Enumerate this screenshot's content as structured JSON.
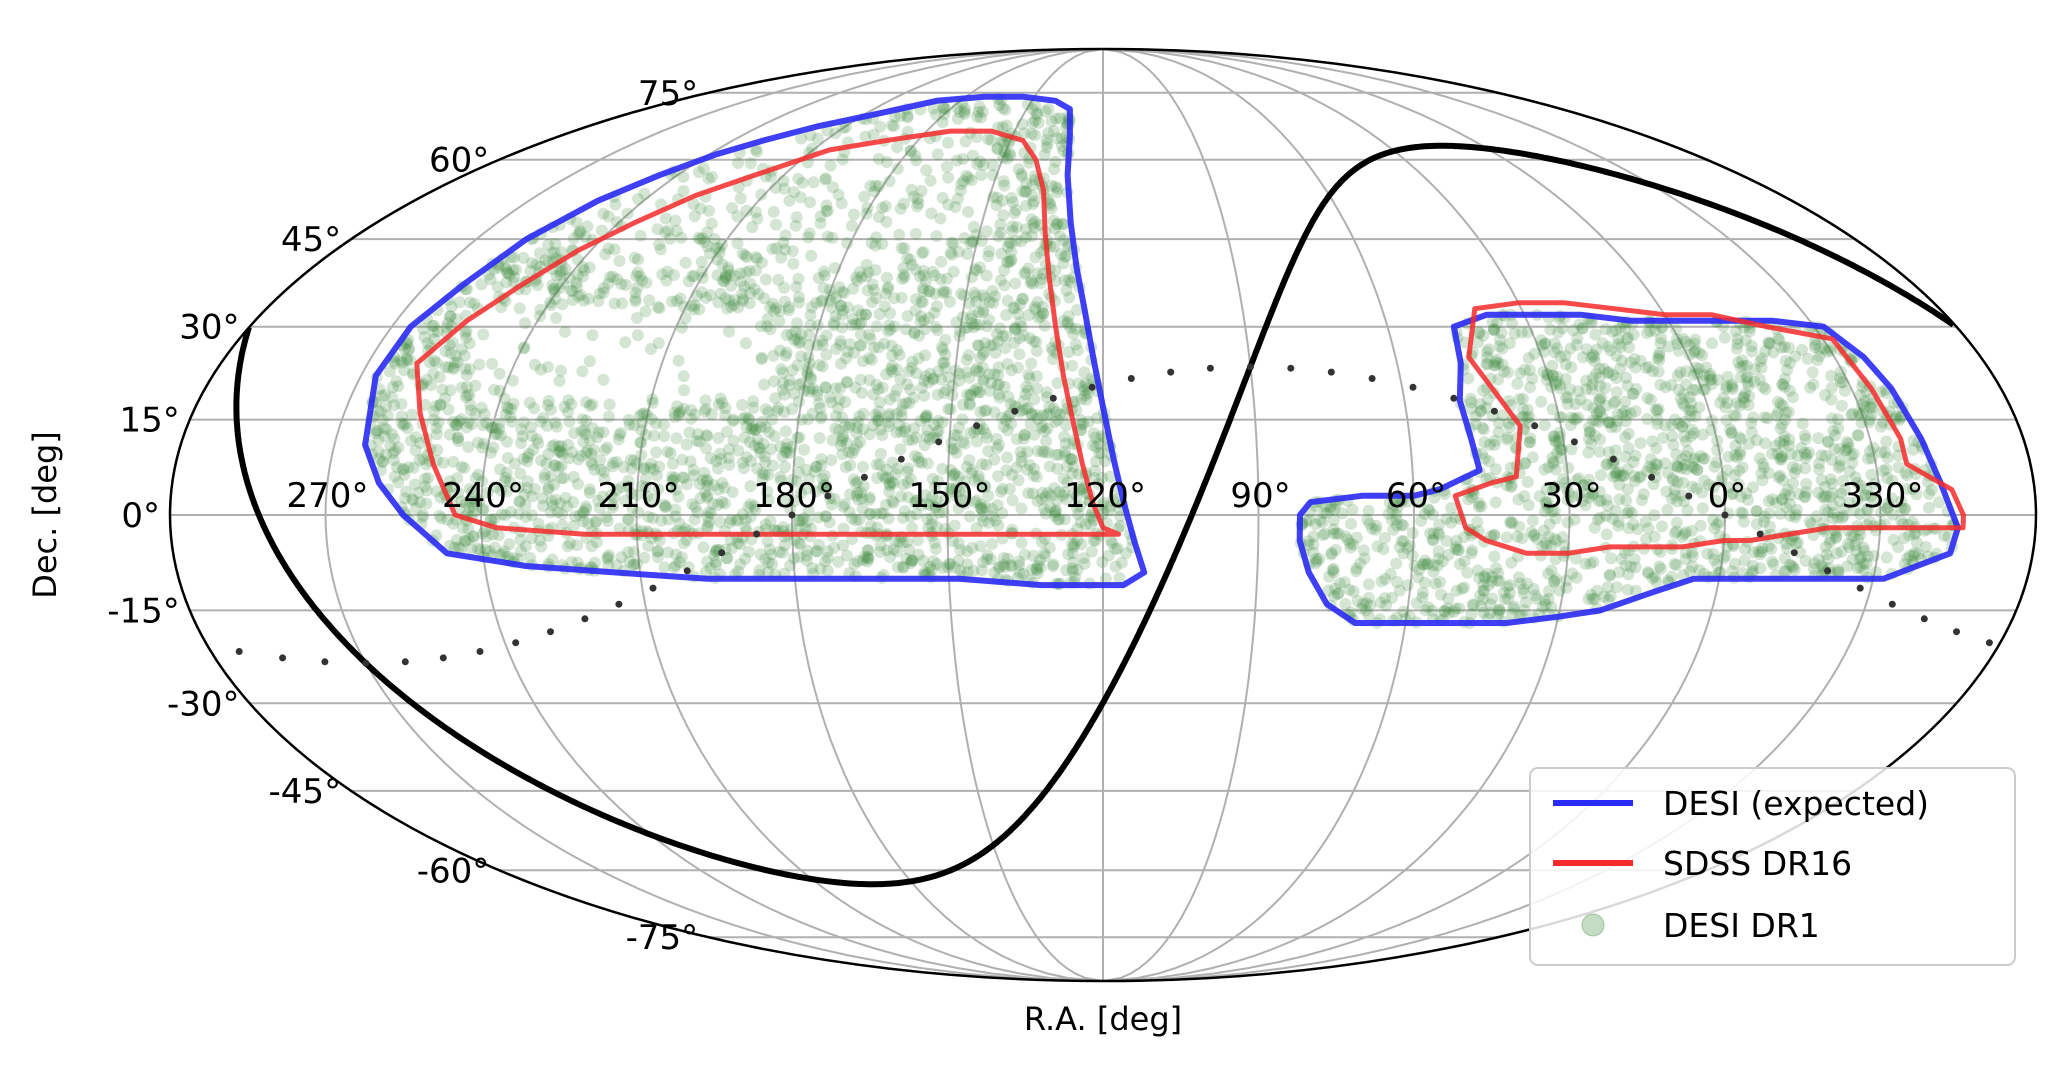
{
  "chart_data": {
    "type": "scatter",
    "projection": "mollweide",
    "xlabel": "R.A. [deg]",
    "ylabel": "Dec. [deg]",
    "ra_ticks": [
      270,
      240,
      210,
      180,
      150,
      120,
      90,
      60,
      30,
      0,
      330
    ],
    "ra_tick_labels": [
      "270°",
      "240°",
      "210°",
      "180°",
      "150°",
      "120°",
      "90°",
      "60°",
      "30°",
      "0°",
      "330°"
    ],
    "dec_ticks": [
      75,
      60,
      45,
      30,
      15,
      0,
      -15,
      -30,
      -45,
      -60,
      -75
    ],
    "dec_tick_labels": [
      "75°",
      "60°",
      "45°",
      "30°",
      "15°",
      "0°",
      "-15°",
      "-30°",
      "-45°",
      "-60°",
      "-75°"
    ],
    "grid": true,
    "legend_position": "bottom-right",
    "colors": {
      "desi_expected": "#2a2af5",
      "sdss_dr16": "#f52a2a",
      "desi_dr1": "#3d8a3d",
      "overlap": "#7a2a00",
      "galactic_plane": "#000000",
      "ecliptic": "#333333",
      "grid": "#b0b0b0"
    },
    "series": [
      {
        "name": "DESI (expected)",
        "kind": "line",
        "footprints": [
          [
            [
              267,
              22
            ],
            [
              266,
              30
            ],
            [
              262,
              37
            ],
            [
              258,
              45
            ],
            [
              252,
              52
            ],
            [
              245,
              57
            ],
            [
              238,
              61
            ],
            [
              230,
              64
            ],
            [
              220,
              67
            ],
            [
              205,
              70
            ],
            [
              190,
              73
            ],
            [
              172,
              74
            ],
            [
              155,
              74
            ],
            [
              140,
              73
            ],
            [
              133,
              71
            ],
            [
              131,
              65
            ],
            [
              130,
              57
            ],
            [
              128,
              48
            ],
            [
              126,
              40
            ],
            [
              124,
              33
            ],
            [
              122,
              25
            ],
            [
              120,
              17
            ],
            [
              118,
              9
            ],
            [
              116,
              2
            ],
            [
              114,
              -4
            ],
            [
              112,
              -9
            ],
            [
              116,
              -11
            ],
            [
              132,
              -11
            ],
            [
              148,
              -10
            ],
            [
              165,
              -10
            ],
            [
              180,
              -10
            ],
            [
              197,
              -10
            ],
            [
              215,
              -9
            ],
            [
              232,
              -8
            ],
            [
              247,
              -6
            ],
            [
              255,
              0
            ],
            [
              260,
              5
            ],
            [
              264,
              11
            ],
            [
              267,
              22
            ]
          ],
          [
            [
              47,
              7
            ],
            [
              48,
              12
            ],
            [
              49,
              18
            ],
            [
              47,
              24
            ],
            [
              46,
              30
            ],
            [
              38,
              32
            ],
            [
              28,
              32
            ],
            [
              18,
              32
            ],
            [
              8,
              31
            ],
            [
              0,
              31
            ],
            [
              -10,
              31
            ],
            [
              -22,
              31
            ],
            [
              -32,
              30
            ],
            [
              -36,
              25
            ],
            [
              -38,
              20
            ],
            [
              -40,
              12
            ],
            [
              -42,
              5
            ],
            [
              -45,
              -2
            ],
            [
              -44,
              -6
            ],
            [
              -32,
              -10
            ],
            [
              -18,
              -10
            ],
            [
              -4,
              -10
            ],
            [
              5,
              -10
            ],
            [
              12,
              -12
            ],
            [
              22,
              -15
            ],
            [
              30,
              -16
            ],
            [
              40,
              -17
            ],
            [
              52,
              -17
            ],
            [
              62,
              -17
            ],
            [
              70,
              -17
            ],
            [
              76,
              -14
            ],
            [
              80,
              -9
            ],
            [
              82,
              -4
            ],
            [
              82,
              0
            ],
            [
              80,
              2
            ],
            [
              70,
              3
            ],
            [
              60,
              3
            ],
            [
              55,
              4
            ],
            [
              47,
              7
            ]
          ]
        ]
      },
      {
        "name": "SDSS DR16",
        "kind": "line",
        "footprints": [
          [
            [
              260,
              24
            ],
            [
              255,
              31
            ],
            [
              249,
              37
            ],
            [
              243,
              43
            ],
            [
              236,
              48
            ],
            [
              228,
              53
            ],
            [
              218,
              57
            ],
            [
              205,
              62
            ],
            [
              190,
              64
            ],
            [
              172,
              66
            ],
            [
              158,
              66
            ],
            [
              146,
              64
            ],
            [
              140,
              60
            ],
            [
              136,
              54
            ],
            [
              134,
              46
            ],
            [
              132,
              38
            ],
            [
              130,
              30
            ],
            [
              128,
              22
            ],
            [
              126,
              15
            ],
            [
              124,
              8
            ],
            [
              122,
              2
            ],
            [
              120,
              -2
            ],
            [
              117,
              -3
            ],
            [
              132,
              -3
            ],
            [
              150,
              -3
            ],
            [
              170,
              -3
            ],
            [
              185,
              -3
            ],
            [
              200,
              -3
            ],
            [
              220,
              -3
            ],
            [
              237,
              -2
            ],
            [
              245,
              0
            ],
            [
              250,
              8
            ],
            [
              255,
              16
            ],
            [
              260,
              24
            ]
          ],
          [
            [
              45,
              25
            ],
            [
              40,
              33
            ],
            [
              30,
              34
            ],
            [
              20,
              34
            ],
            [
              10,
              33
            ],
            [
              0,
              32
            ],
            [
              -10,
              32
            ],
            [
              -20,
              30
            ],
            [
              -32,
              28
            ],
            [
              -34,
              20
            ],
            [
              -36,
              12
            ],
            [
              -36,
              8
            ],
            [
              -44,
              4
            ],
            [
              -46,
              0
            ],
            [
              -46,
              -2
            ],
            [
              -33,
              -2
            ],
            [
              -20,
              -2
            ],
            [
              -5,
              -4
            ],
            [
              0,
              -4
            ],
            [
              8,
              -5
            ],
            [
              15,
              -5
            ],
            [
              22,
              -5
            ],
            [
              30,
              -6
            ],
            [
              38,
              -6
            ],
            [
              46,
              -4
            ],
            [
              50,
              -2
            ],
            [
              52,
              3
            ],
            [
              45,
              5
            ],
            [
              40,
              6
            ],
            [
              38,
              14
            ],
            [
              42,
              20
            ],
            [
              45,
              25
            ]
          ]
        ]
      },
      {
        "name": "DESI DR1",
        "kind": "scatter",
        "alpha": 0.25
      },
      {
        "name": "Galactic plane",
        "kind": "line",
        "unlabeled": true
      },
      {
        "name": "Ecliptic",
        "kind": "dotted",
        "unlabeled": true
      }
    ]
  }
}
